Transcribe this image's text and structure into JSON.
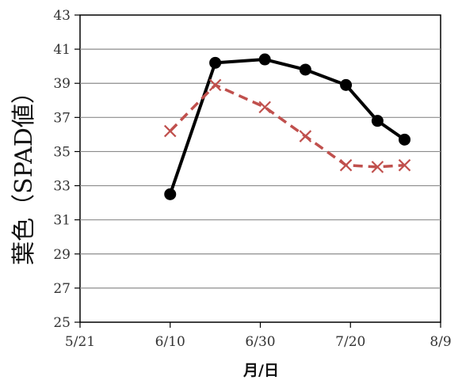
{
  "chart_data": {
    "type": "line",
    "title": "",
    "xlabel": "月/日",
    "ylabel": "葉色（SPAD値）",
    "xlim": [
      "5/21",
      "8/9"
    ],
    "ylim": [
      25,
      43
    ],
    "x_ticks": [
      "5/21",
      "6/10",
      "6/30",
      "7/20",
      "8/9"
    ],
    "y_ticks": [
      25,
      27,
      29,
      31,
      33,
      35,
      37,
      39,
      41,
      43
    ],
    "grid": "horizontal",
    "legend": "none",
    "series": [
      {
        "color": "#000000",
        "line_style": "solid",
        "marker": "circle",
        "points": [
          {
            "x": "6/10",
            "y": 32.5
          },
          {
            "x": "6/20",
            "y": 40.2
          },
          {
            "x": "7/1",
            "y": 40.4
          },
          {
            "x": "7/10",
            "y": 39.8
          },
          {
            "x": "7/19",
            "y": 38.9
          },
          {
            "x": "7/26",
            "y": 36.8
          },
          {
            "x": "8/1",
            "y": 35.7
          }
        ]
      },
      {
        "color": "#c0504d",
        "line_style": "dashed",
        "marker": "x",
        "points": [
          {
            "x": "6/10",
            "y": 36.2
          },
          {
            "x": "6/20",
            "y": 38.9
          },
          {
            "x": "7/1",
            "y": 37.6
          },
          {
            "x": "7/10",
            "y": 35.9
          },
          {
            "x": "7/19",
            "y": 34.2
          },
          {
            "x": "7/26",
            "y": 34.1
          },
          {
            "x": "8/1",
            "y": 34.2
          }
        ]
      }
    ]
  }
}
